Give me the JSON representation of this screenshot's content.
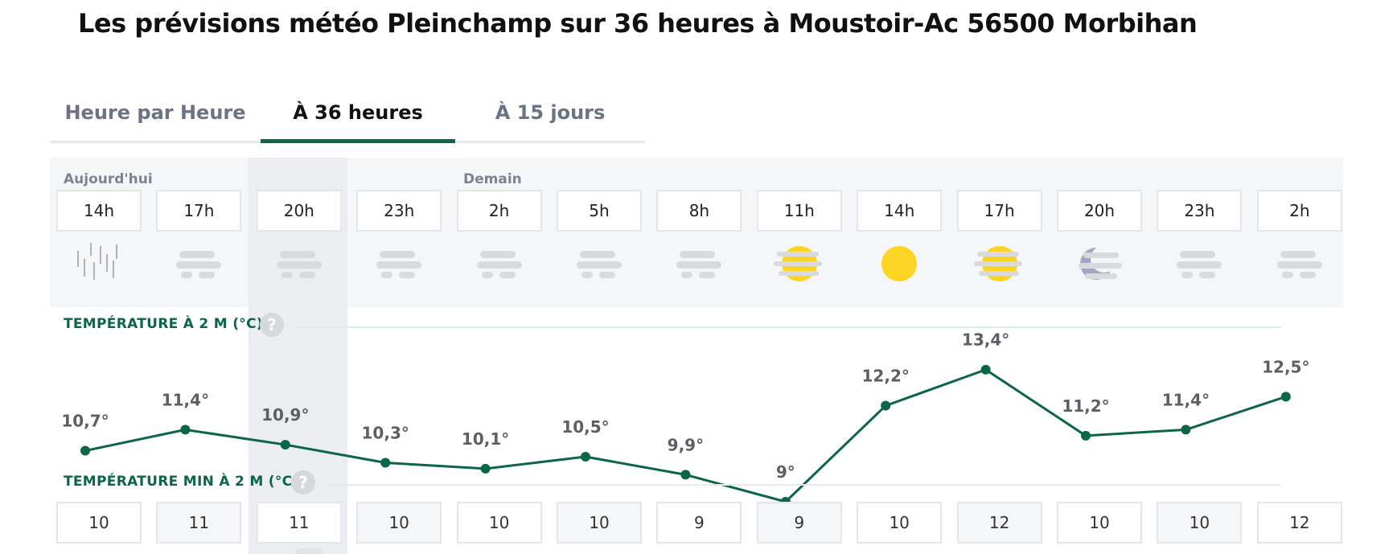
{
  "page": {
    "title": "Les prévisions météo Pleinchamp sur 36 heures à Moustoir-Ac 56500 Morbihan"
  },
  "tabs": [
    {
      "label": "Heure par Heure",
      "active": false
    },
    {
      "label": "À 36 heures",
      "active": true
    },
    {
      "label": "À 15 jours",
      "active": false
    }
  ],
  "days": {
    "today": "Aujourd'hui",
    "tomorrow": "Demain"
  },
  "hours": [
    "14h",
    "17h",
    "20h",
    "23h",
    "2h",
    "5h",
    "8h",
    "11h",
    "14h",
    "17h",
    "20h",
    "23h",
    "2h"
  ],
  "icons": [
    "rain-icon",
    "fog-icon",
    "fog-icon",
    "fog-icon",
    "fog-icon",
    "fog-icon",
    "fog-icon",
    "sun-fog-icon",
    "sun-icon",
    "sun-fog-icon",
    "moon-fog-icon",
    "fog-icon",
    "fog-icon"
  ],
  "sections": {
    "temperature": "TEMPÉRATURE À 2 M (°C)",
    "temperature_min": "TEMPÉRATURE MIN À 2 M (°C)",
    "help": "?"
  },
  "chart_data": {
    "type": "line",
    "x": [
      "14h",
      "17h",
      "20h",
      "23h",
      "2h",
      "5h",
      "8h",
      "11h",
      "14h",
      "17h",
      "20h",
      "23h",
      "2h"
    ],
    "series": [
      {
        "values": [
          10.7,
          11.4,
          10.9,
          10.3,
          10.1,
          10.5,
          9.9,
          9,
          12.2,
          13.4,
          11.2,
          11.4,
          12.5
        ],
        "labels": [
          "10,7°",
          "11,4°",
          "10,9°",
          "10,3°",
          "10,1°",
          "10,5°",
          "9,9°",
          "9°",
          "12,2°",
          "13,4°",
          "11,2°",
          "11,4°",
          "12,5°"
        ]
      }
    ],
    "ylim": [
      7.5,
      15
    ],
    "grid": false,
    "legend": "none"
  },
  "temperature_min": [
    "10",
    "11",
    "11",
    "10",
    "10",
    "10",
    "9",
    "9",
    "10",
    "12",
    "10",
    "10",
    "12"
  ],
  "colors": {
    "accent": "#0b6548",
    "tab_inactive": "#6b7384",
    "panel": "#f5f6f8",
    "highlight": "#ebedf1",
    "fog": "#d9dadd",
    "sun": "#fcd424",
    "moon": "#a3a6c7"
  }
}
